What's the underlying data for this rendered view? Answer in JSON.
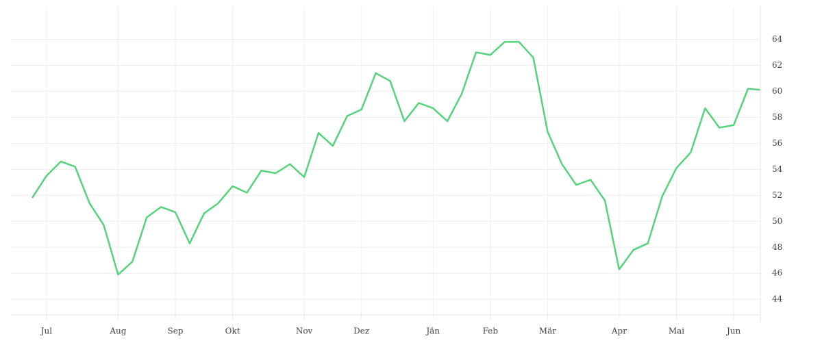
{
  "chart_data": {
    "type": "line",
    "categories": [
      null,
      "Jul",
      null,
      null,
      null,
      null,
      "Aug",
      null,
      null,
      null,
      "Sep",
      null,
      null,
      null,
      "Okt",
      null,
      null,
      null,
      null,
      "Nov",
      null,
      null,
      null,
      "Dez",
      null,
      null,
      null,
      null,
      "Jän",
      null,
      null,
      null,
      "Feb",
      null,
      null,
      null,
      "Mär",
      null,
      null,
      null,
      null,
      "Apr",
      null,
      null,
      null,
      "Mai",
      null,
      null,
      null,
      "Jun",
      null,
      null
    ],
    "series": [
      {
        "color": "#57d27c",
        "values": [
          51.8,
          53.5,
          54.6,
          54.2,
          51.4,
          49.7,
          45.9,
          46.9,
          50.3,
          51.1,
          50.7,
          48.3,
          50.6,
          51.4,
          52.7,
          52.2,
          53.9,
          53.7,
          54.4,
          53.4,
          56.8,
          55.8,
          58.1,
          58.6,
          61.4,
          60.8,
          57.7,
          59.1,
          58.7,
          57.7,
          59.8,
          63.0,
          62.8,
          63.8,
          63.8,
          62.6,
          56.9,
          54.4,
          52.8,
          53.2,
          51.6,
          46.3,
          47.8,
          48.3,
          51.9,
          54.1,
          55.3,
          58.7,
          57.2,
          57.4,
          60.2,
          60.1
        ]
      }
    ],
    "ylim": [
      42.8,
      66.5
    ],
    "yticks": [
      44,
      46,
      48,
      50,
      52,
      54,
      56,
      58,
      60,
      62,
      64
    ],
    "grid": true
  }
}
